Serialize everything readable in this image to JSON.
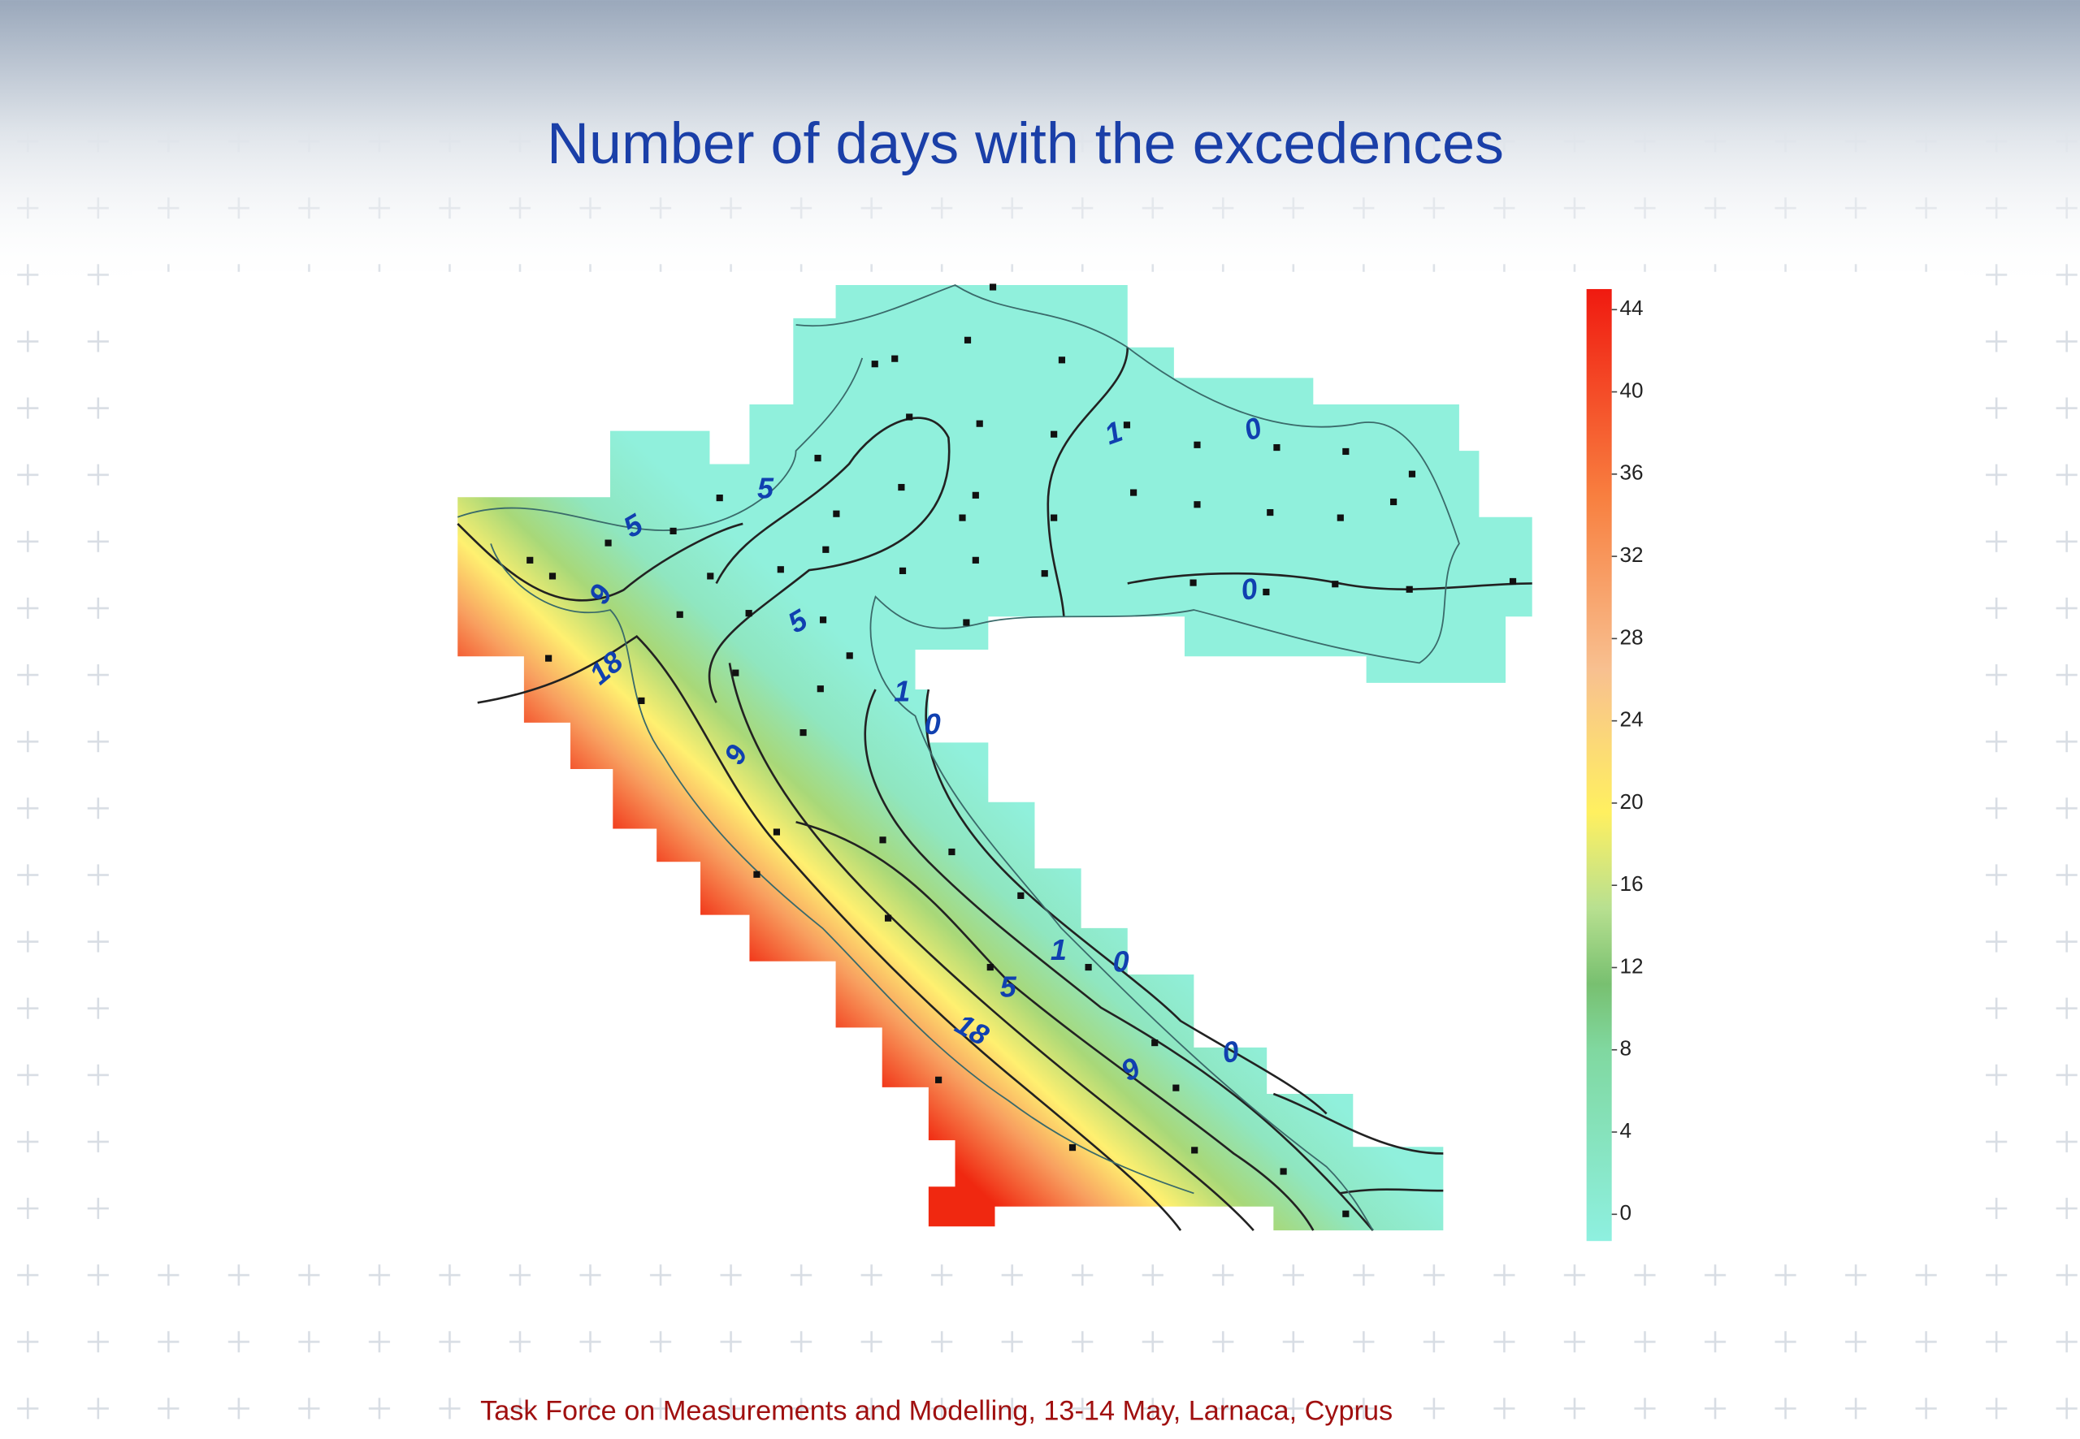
{
  "title": "Number of days with the excedences",
  "footer": "Task Force on Measurements and Modelling, 13-14 May, Larnaca, Cyprus",
  "map": {
    "contour_labels": [
      "1",
      "0",
      "5",
      "5",
      "9",
      "18",
      "5",
      "1",
      "0",
      "0",
      "9",
      "1",
      "0",
      "5",
      "18",
      "9",
      "0"
    ],
    "colorbar": {
      "lim": [
        -1.3,
        45.0
      ],
      "ticks": [
        0,
        4,
        8,
        12,
        16,
        20,
        24,
        28,
        32,
        36,
        40,
        44
      ]
    }
  }
}
